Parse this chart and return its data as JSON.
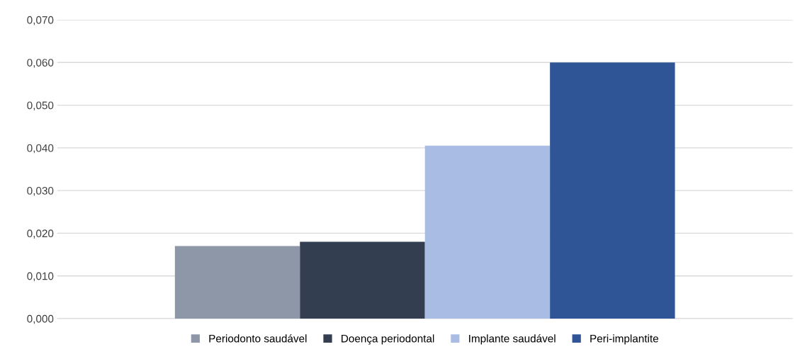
{
  "chart_data": {
    "type": "bar",
    "categories": [
      null
    ],
    "series": [
      {
        "name": "Periodonto saudável",
        "color": "#8d97a8",
        "values": [
          0.017
        ]
      },
      {
        "name": "Doença periodontal",
        "color": "#333f50",
        "values": [
          0.018
        ]
      },
      {
        "name": "Implante saudável",
        "color": "#a9bce4",
        "values": [
          0.0405
        ]
      },
      {
        "name": "Peri-implantite",
        "color": "#2f5597",
        "values": [
          0.06
        ]
      }
    ],
    "ylim": [
      0,
      0.07
    ],
    "yticks": [
      {
        "value": 0,
        "label": "0,000"
      },
      {
        "value": 0.01,
        "label": "0,010"
      },
      {
        "value": 0.02,
        "label": "0,020"
      },
      {
        "value": 0.03,
        "label": "0,030"
      },
      {
        "value": 0.04,
        "label": "0,040"
      },
      {
        "value": 0.05,
        "label": "0,050"
      },
      {
        "value": 0.06,
        "label": "0,060"
      },
      {
        "value": 0.07,
        "label": "0,070"
      }
    ],
    "grid": "y",
    "legend": "bottom"
  }
}
